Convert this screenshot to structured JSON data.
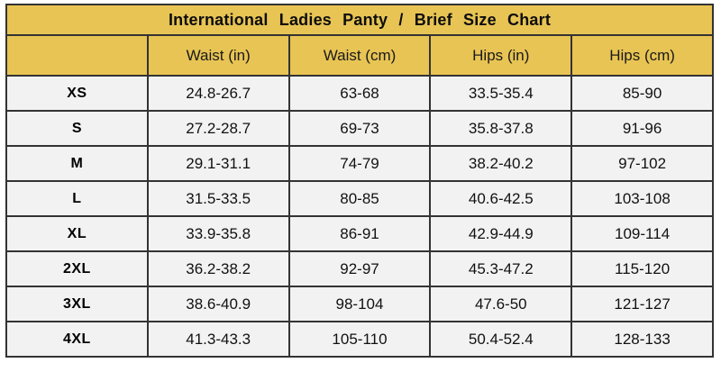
{
  "title": "International Ladies Panty / Brief Size Chart",
  "table": {
    "columns": [
      "",
      "Waist (in)",
      "Waist (cm)",
      "Hips (in)",
      "Hips (cm)"
    ],
    "rows": [
      {
        "size": "XS",
        "values": [
          "24.8-26.7",
          "63-68",
          "33.5-35.4",
          "85-90"
        ]
      },
      {
        "size": "S",
        "values": [
          "27.2-28.7",
          "69-73",
          "35.8-37.8",
          "91-96"
        ]
      },
      {
        "size": "M",
        "values": [
          "29.1-31.1",
          "74-79",
          "38.2-40.2",
          "97-102"
        ]
      },
      {
        "size": "L",
        "values": [
          "31.5-33.5",
          "80-85",
          "40.6-42.5",
          "103-108"
        ]
      },
      {
        "size": "XL",
        "values": [
          "33.9-35.8",
          "86-91",
          "42.9-44.9",
          "109-114"
        ]
      },
      {
        "size": "2XL",
        "values": [
          "36.2-38.2",
          "92-97",
          "45.3-47.2",
          "115-120"
        ]
      },
      {
        "size": "3XL",
        "values": [
          "38.6-40.9",
          "98-104",
          "47.6-50",
          "121-127"
        ]
      },
      {
        "size": "4XL",
        "values": [
          "41.3-43.3",
          "105-110",
          "50.4-52.4",
          "128-133"
        ]
      }
    ]
  },
  "colors": {
    "gold": "#e8c454",
    "row_bg": "#f2f2f2",
    "border": "#333333"
  }
}
